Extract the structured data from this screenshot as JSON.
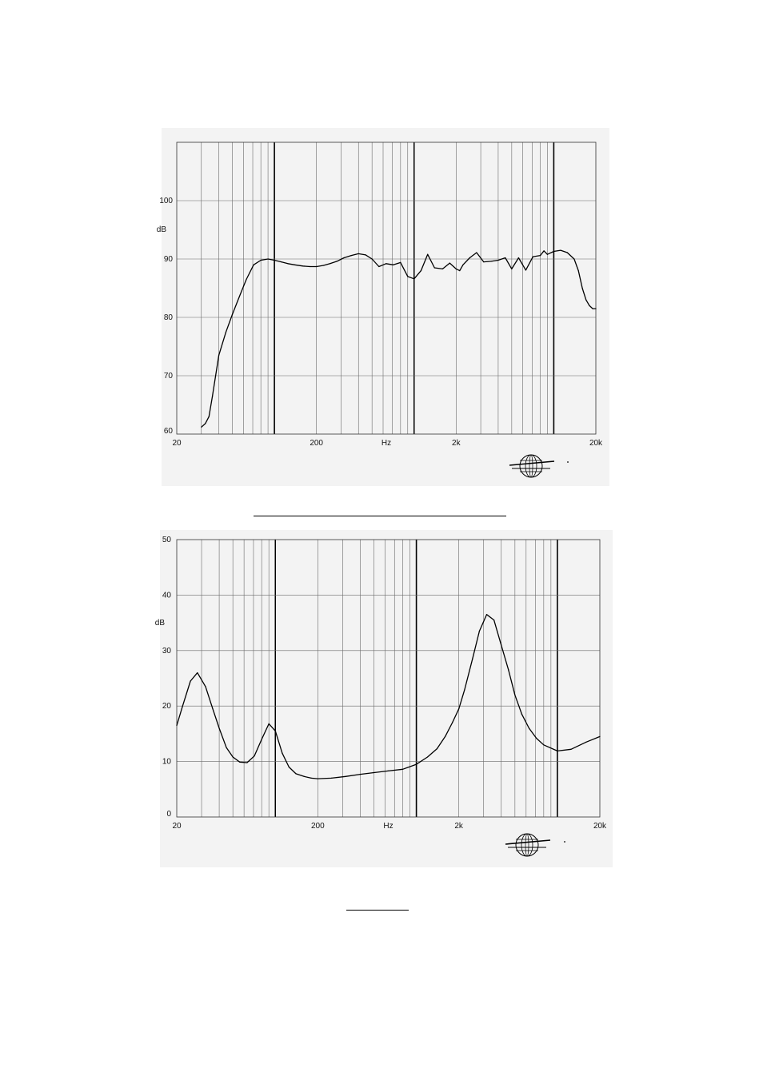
{
  "chart_data": [
    {
      "type": "line",
      "xscale": "log",
      "xlim": [
        20,
        20000
      ],
      "ylim": [
        60,
        110
      ],
      "x_ticks": [
        "20",
        "200",
        "Hz",
        "2k",
        "20k"
      ],
      "y_ticks": [
        "60",
        "70",
        "80",
        "90",
        "100"
      ],
      "ylabel": "dB",
      "grid": true,
      "logo": "B&K",
      "series": [
        {
          "x": [
            30,
            32,
            34,
            36,
            40,
            45,
            50,
            56,
            63,
            71,
            80,
            90,
            100,
            112,
            125,
            140,
            160,
            180,
            200,
            225,
            250,
            280,
            315,
            355,
            400,
            450,
            500,
            560,
            630,
            710,
            800,
            900,
            1000,
            1120,
            1250,
            1400,
            1600,
            1800,
            2000,
            2120,
            2240,
            2500,
            2800,
            3150,
            3550,
            4000,
            4500,
            5000,
            5600,
            6300,
            7100,
            8000,
            8500,
            9000,
            10000,
            11200,
            12500,
            14000,
            15000,
            16000,
            17000,
            18000,
            19000,
            20000
          ],
          "y": [
            61.2,
            61.8,
            63.0,
            66.5,
            73.5,
            77.5,
            80.5,
            83.5,
            86.5,
            89.0,
            89.8,
            90.0,
            89.8,
            89.5,
            89.2,
            89.0,
            88.8,
            88.7,
            88.7,
            88.9,
            89.2,
            89.6,
            90.2,
            90.6,
            90.9,
            90.7,
            90.0,
            88.7,
            89.2,
            89.0,
            89.4,
            87.0,
            86.6,
            88.0,
            90.8,
            88.5,
            88.3,
            89.3,
            88.3,
            88.0,
            89.0,
            90.2,
            91.1,
            89.5,
            89.6,
            89.8,
            90.2,
            88.3,
            90.2,
            88.1,
            90.4,
            90.6,
            91.4,
            90.8,
            91.3,
            91.5,
            91.1,
            90.0,
            88.0,
            85.0,
            83.0,
            82.0,
            81.5,
            81.5
          ]
        }
      ]
    },
    {
      "type": "line",
      "xscale": "log",
      "xlim": [
        20,
        20000
      ],
      "ylim": [
        0,
        50
      ],
      "x_ticks": [
        "20",
        "200",
        "Hz",
        "2k",
        "20k"
      ],
      "y_ticks": [
        "0",
        "10",
        "20",
        "30",
        "40",
        "50"
      ],
      "ylabel": "dB",
      "grid": true,
      "logo": "B&K",
      "series": [
        {
          "x": [
            20,
            22,
            25,
            28,
            32,
            36,
            40,
            45,
            50,
            56,
            63,
            71,
            80,
            90,
            100,
            112,
            125,
            140,
            160,
            180,
            200,
            250,
            315,
            400,
            500,
            630,
            800,
            1000,
            1200,
            1400,
            1600,
            1800,
            2000,
            2200,
            2500,
            2800,
            3150,
            3550,
            4000,
            4500,
            5000,
            5600,
            6300,
            7100,
            8000,
            10000,
            12500,
            16000,
            20000
          ],
          "y": [
            16.5,
            20.0,
            24.5,
            26.0,
            23.5,
            19.5,
            16.0,
            12.5,
            10.8,
            9.9,
            9.8,
            11.0,
            14.0,
            16.8,
            15.5,
            11.5,
            9.0,
            7.8,
            7.3,
            7.0,
            6.9,
            7.0,
            7.3,
            7.7,
            8.0,
            8.3,
            8.6,
            9.5,
            10.8,
            12.3,
            14.5,
            17.0,
            19.5,
            23.0,
            28.5,
            33.5,
            36.5,
            35.5,
            31.0,
            26.5,
            22.0,
            18.5,
            16.0,
            14.2,
            13.0,
            11.9,
            12.2,
            13.5,
            14.5
          ]
        }
      ]
    }
  ]
}
